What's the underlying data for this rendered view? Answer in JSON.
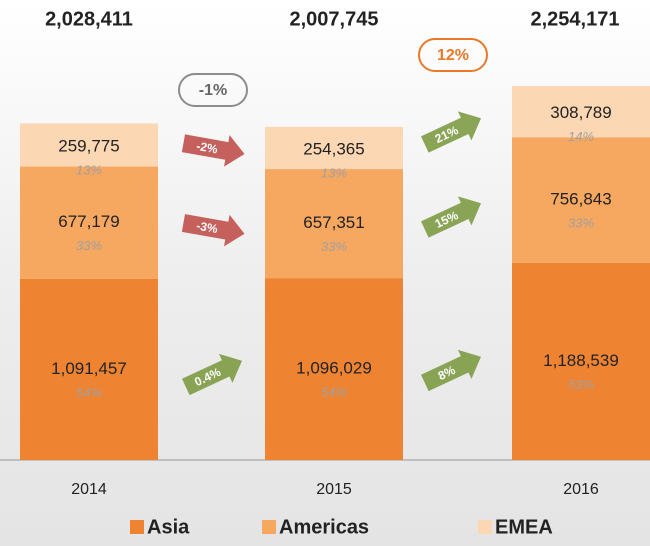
{
  "chart_data": {
    "type": "stacked_bar",
    "categories": [
      "2014",
      "2015",
      "2016"
    ],
    "total_labels": [
      "2,028,411",
      "2,007,745",
      "2,254,171"
    ],
    "total_changes": [
      "-1%",
      "12%"
    ],
    "total_change_colors": [
      "#8c8c8c",
      "#e8782a"
    ],
    "series": [
      {
        "name": "Asia",
        "color": "#ee8432",
        "values": [
          1091457,
          1096029,
          1188539
        ],
        "value_labels": [
          "1,091,457",
          "1,096,029",
          "1,188,539"
        ],
        "shares": [
          "54%",
          "54%",
          "53%"
        ],
        "changes": [
          "0.4%",
          "8%"
        ],
        "change_colors": [
          "#7e9b45",
          "#7e9b45"
        ]
      },
      {
        "name": "Americas",
        "color": "#f6a760",
        "values": [
          677179,
          657351,
          756843
        ],
        "value_labels": [
          "677,179",
          "657,351",
          "756,843"
        ],
        "shares": [
          "33%",
          "33%",
          "33%"
        ],
        "changes": [
          "-3%",
          "15%"
        ],
        "change_colors": [
          "#c0504d",
          "#7e9b45"
        ]
      },
      {
        "name": "EMEA",
        "color": "#fbd7b3",
        "values": [
          259775,
          254365,
          308789
        ],
        "value_labels": [
          "259,775",
          "254,365",
          "308,789"
        ],
        "shares": [
          "13%",
          "13%",
          "14%"
        ],
        "changes": [
          "-2%",
          "21%"
        ],
        "change_colors": [
          "#c0504d",
          "#7e9b45"
        ]
      }
    ]
  }
}
